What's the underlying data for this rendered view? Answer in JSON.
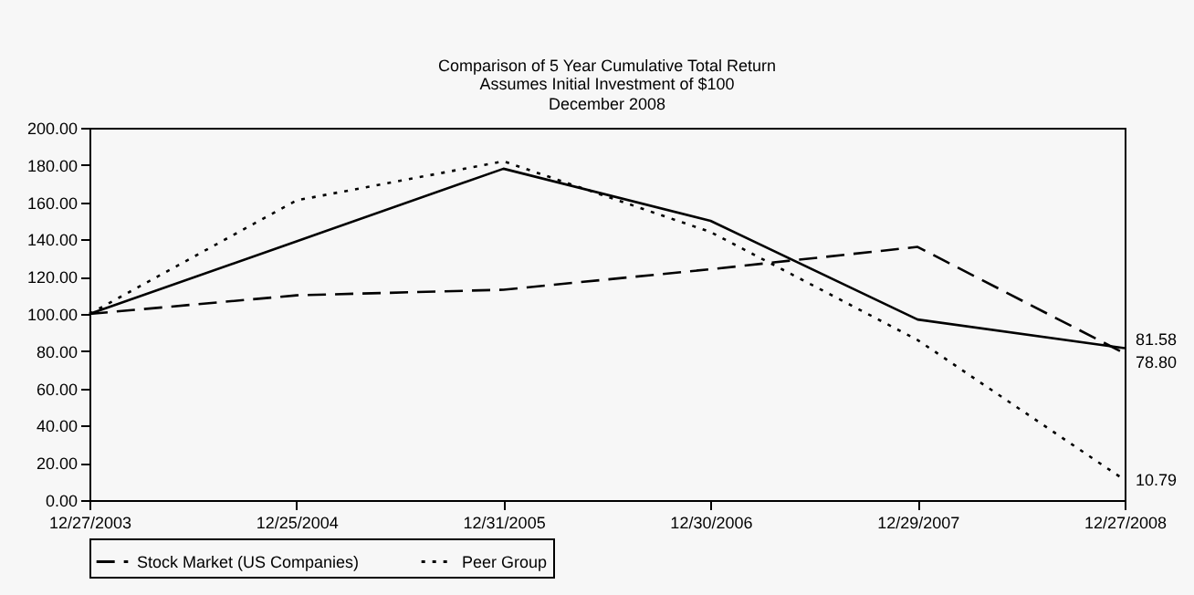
{
  "chart_data": {
    "type": "line",
    "title": "Comparison of 5 Year Cumulative Total Return",
    "subtitle": "Assumes Initial Investment of $100\nDecember 2008",
    "categories": [
      "12/27/2003",
      "12/25/2004",
      "12/31/2005",
      "12/30/2006",
      "12/29/2007",
      "12/27/2008"
    ],
    "series": [
      {
        "color": "#000000",
        "line_style": "solid",
        "values": [
          100,
          139,
          178,
          150,
          97,
          81.58
        ],
        "value_labels": [
          null,
          null,
          null,
          null,
          null,
          "81.58"
        ]
      },
      {
        "name": "Stock Market (US Companies)",
        "color": "#000000",
        "line_style": "dashed",
        "values": [
          100,
          110,
          113,
          124,
          136,
          78.8
        ],
        "value_labels": [
          null,
          null,
          null,
          null,
          null,
          "78.80"
        ]
      },
      {
        "name": "Peer Group",
        "color": "#000000",
        "line_style": "dotted",
        "values": [
          100,
          161,
          182,
          144,
          86,
          10.79
        ],
        "value_labels": [
          null,
          null,
          null,
          null,
          null,
          "10.79"
        ]
      }
    ],
    "ylim": [
      0,
      200
    ],
    "yticks": [
      {
        "value": 0,
        "label": "0.00"
      },
      {
        "value": 20,
        "label": "20.00"
      },
      {
        "value": 40,
        "label": "40.00"
      },
      {
        "value": 60,
        "label": "60.00"
      },
      {
        "value": 80,
        "label": "80.00"
      },
      {
        "value": 100,
        "label": "100.00"
      },
      {
        "value": 120,
        "label": "120.00"
      },
      {
        "value": 140,
        "label": "140.00"
      },
      {
        "value": 160,
        "label": "160.00"
      },
      {
        "value": 180,
        "label": "180.00"
      },
      {
        "value": 200,
        "label": "200.00"
      }
    ],
    "grid": false,
    "legend": "bottom"
  }
}
